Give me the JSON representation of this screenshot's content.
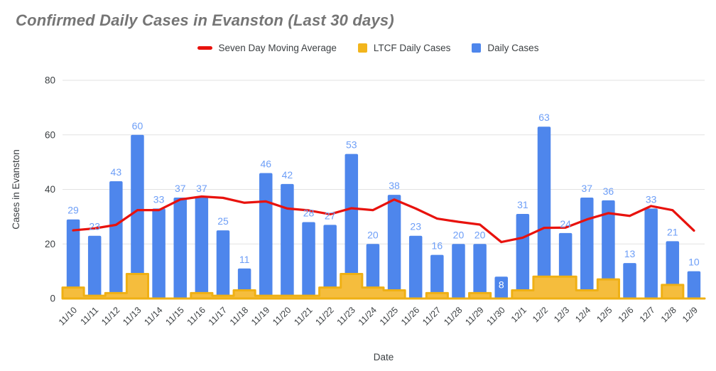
{
  "title": "Confirmed Daily Cases in Evanston (Last 30 days)",
  "legend": [
    {
      "label": "Seven Day Moving Average",
      "type": "line",
      "color": "#e8120d"
    },
    {
      "label": "LTCF Daily Cases",
      "type": "square",
      "color": "#f2b51c"
    },
    {
      "label": "Daily Cases",
      "type": "square",
      "color": "#4e86ec"
    }
  ],
  "chart_data": {
    "type": "combo",
    "title": "Confirmed Daily Cases in Evanston (Last 30 days)",
    "xlabel": "Date",
    "ylabel": "Cases in Evanston",
    "ylim": [
      0,
      80
    ],
    "yticks": [
      0,
      20,
      40,
      60,
      80
    ],
    "grid": true,
    "legend_position": "top",
    "categories": [
      "11/10",
      "11/11",
      "11/12",
      "11/13",
      "11/14",
      "11/15",
      "11/16",
      "11/17",
      "11/18",
      "11/19",
      "11/20",
      "11/21",
      "11/22",
      "11/23",
      "11/24",
      "11/25",
      "11/26",
      "11/27",
      "11/28",
      "11/29",
      "11/30",
      "12/1",
      "12/2",
      "12/3",
      "12/4",
      "12/5",
      "12/6",
      "12/7",
      "12/8",
      "12/9"
    ],
    "series": [
      {
        "name": "Daily Cases",
        "type": "bar",
        "color": "#4e86ec",
        "label_color": "#6d9ef7",
        "inside_label_indices": [
          20
        ],
        "inside_label_color": "#ffffff",
        "values": [
          29,
          23,
          43,
          60,
          33,
          37,
          37,
          25,
          11,
          46,
          42,
          28,
          27,
          53,
          20,
          38,
          23,
          16,
          20,
          20,
          8,
          31,
          63,
          24,
          37,
          36,
          13,
          33,
          21,
          10
        ]
      },
      {
        "name": "LTCF Daily Cases",
        "type": "stepped-area",
        "color": "#f5bd3d",
        "stroke": "#efb014",
        "values": [
          4,
          1,
          2,
          9,
          0,
          0,
          2,
          1,
          3,
          1,
          1,
          1,
          4,
          9,
          4,
          3,
          0,
          2,
          0,
          2,
          0,
          3,
          8,
          8,
          3,
          7,
          0,
          0,
          5,
          0
        ]
      },
      {
        "name": "Seven Day Moving Average",
        "type": "line",
        "color": "#e8120d",
        "values": [
          25,
          25.7,
          27,
          32.4,
          32.4,
          36.3,
          37.4,
          36.9,
          35.1,
          35.6,
          33,
          32.3,
          30.9,
          33.1,
          32.4,
          36.3,
          33,
          29.3,
          28.1,
          27.1,
          20.7,
          22.3,
          25.9,
          26,
          29,
          31.3,
          30.3,
          33.9,
          32.4,
          24.9
        ]
      }
    ],
    "colors": {
      "gridline": "#e2e2e2",
      "tick_label": "#3c4043",
      "axis_title": "#3c4043"
    }
  }
}
